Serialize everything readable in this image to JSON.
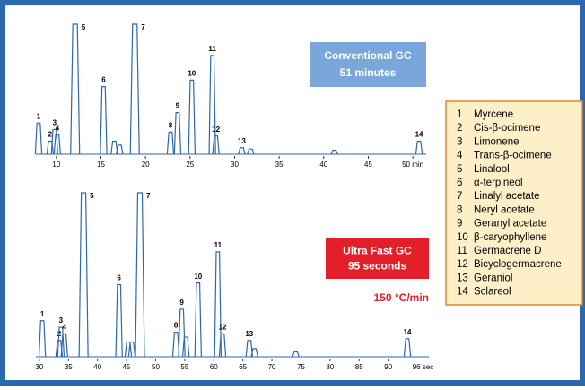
{
  "chart_data": [
    {
      "type": "chromatogram",
      "title": "Conventional GC",
      "subtitle": "51 minutes",
      "color": "#2f66b3",
      "x": [
        8.0,
        9.3,
        9.8,
        10.1,
        12.1,
        15.3,
        16.5,
        17.1,
        18.8,
        22.8,
        23.6,
        25.2,
        27.5,
        27.9,
        30.8,
        31.8,
        41.2,
        50.7
      ],
      "values": [
        24,
        10,
        19,
        15,
        100,
        52,
        10,
        7,
        100,
        17,
        32,
        57,
        76,
        14,
        5,
        4,
        3,
        10
      ],
      "peak_labels": [
        "1",
        "2",
        "3",
        "4",
        "5",
        "6",
        null,
        null,
        "7",
        "8",
        "9",
        "10",
        "11",
        "12",
        "13",
        null,
        null,
        "14"
      ],
      "xlim": [
        7.7,
        51.5
      ],
      "ylim": [
        0,
        100
      ],
      "xticks": [
        10,
        15,
        20,
        25,
        30,
        35,
        40,
        45,
        {
          "value": 50,
          "label": "50 min"
        }
      ],
      "title_box_color": "#79a7da"
    },
    {
      "type": "chromatogram",
      "title": "Ultra Fast GC",
      "subtitle": "95 seconds",
      "annotation": "150 °C/min",
      "color": "#2f66b3",
      "x": [
        30.5,
        33.4,
        33.7,
        34.3,
        37.6,
        43.7,
        45.3,
        45.9,
        47.3,
        53.5,
        54.5,
        55.2,
        57.3,
        60.7,
        61.5,
        66.1,
        67.0,
        74.1,
        93.3
      ],
      "values": [
        22,
        10,
        18,
        14,
        100,
        44,
        9,
        9,
        100,
        15,
        29,
        12,
        45,
        64,
        14,
        10,
        5,
        3,
        11
      ],
      "peak_labels": [
        "1",
        "2",
        "3",
        "4",
        "5",
        "6",
        null,
        null,
        "7",
        "8",
        "9",
        null,
        "10",
        "11",
        "12",
        "13",
        null,
        null,
        "14"
      ],
      "xlim": [
        29.4,
        97
      ],
      "ylim": [
        0,
        100
      ],
      "xticks": [
        30,
        35,
        40,
        45,
        50,
        55,
        60,
        65,
        70,
        75,
        80,
        85,
        90,
        {
          "value": 96,
          "label": "96 sec"
        }
      ],
      "title_box_color": "#e3202a"
    }
  ],
  "legend": {
    "items": [
      {
        "number": "1",
        "name": "Myrcene"
      },
      {
        "number": "2",
        "name": "Cis-β-ocimene"
      },
      {
        "number": "3",
        "name": "Limonene"
      },
      {
        "number": "4",
        "name": "Trans-β-ocimene"
      },
      {
        "number": "5",
        "name": "Linalool"
      },
      {
        "number": "6",
        "name": "α-terpineol"
      },
      {
        "number": "7",
        "name": "Linalyl acetate"
      },
      {
        "number": "8",
        "name": "Neryl acetate"
      },
      {
        "number": "9",
        "name": "Geranyl acetate"
      },
      {
        "number": "10",
        "name": "β-caryophyllene"
      },
      {
        "number": "11",
        "name": "Germacrene D"
      },
      {
        "number": "12",
        "name": "Bicyclogermacrene"
      },
      {
        "number": "13",
        "name": "Geraniol"
      },
      {
        "number": "14",
        "name": "Sclareol"
      }
    ]
  }
}
